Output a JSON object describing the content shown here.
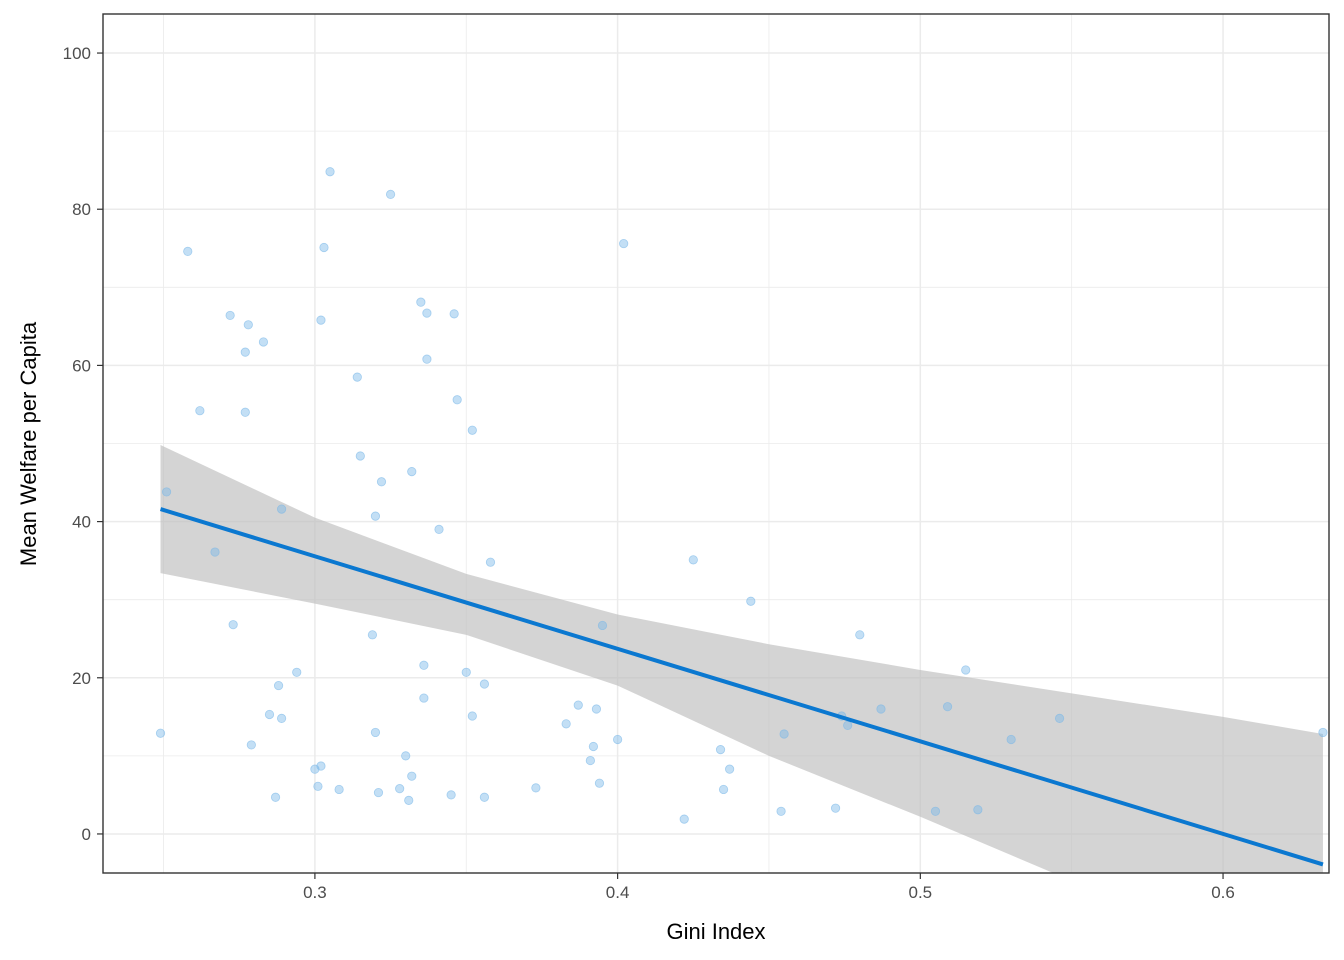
{
  "chart_data": {
    "type": "scatter",
    "xlabel": "Gini Index",
    "ylabel": "Mean Welfare per Capita",
    "xlim": [
      0.23,
      0.635
    ],
    "ylim": [
      -5,
      105
    ],
    "x_ticks": [
      0.3,
      0.4,
      0.5,
      0.6
    ],
    "x_tick_labels": [
      "0.3",
      "0.4",
      "0.5",
      "0.6"
    ],
    "y_ticks": [
      0,
      20,
      40,
      60,
      80,
      100
    ],
    "y_tick_labels": [
      "0",
      "20",
      "40",
      "60",
      "80",
      "100"
    ],
    "grid": true,
    "colors": {
      "points": "#7ab8e8",
      "fit_line": "#0b78d0",
      "ribbon": "#bdbdbd",
      "grid": "#ebebeb",
      "border": "#333333"
    },
    "points": [
      {
        "x": 0.249,
        "y": 12.9
      },
      {
        "x": 0.251,
        "y": 43.8
      },
      {
        "x": 0.258,
        "y": 74.6
      },
      {
        "x": 0.262,
        "y": 54.2
      },
      {
        "x": 0.267,
        "y": 36.1
      },
      {
        "x": 0.272,
        "y": 66.4
      },
      {
        "x": 0.273,
        "y": 26.8
      },
      {
        "x": 0.277,
        "y": 61.7
      },
      {
        "x": 0.277,
        "y": 54.0
      },
      {
        "x": 0.278,
        "y": 65.2
      },
      {
        "x": 0.279,
        "y": 11.4
      },
      {
        "x": 0.283,
        "y": 63.0
      },
      {
        "x": 0.285,
        "y": 15.3
      },
      {
        "x": 0.287,
        "y": 4.7
      },
      {
        "x": 0.288,
        "y": 19.0
      },
      {
        "x": 0.289,
        "y": 14.8
      },
      {
        "x": 0.289,
        "y": 41.6
      },
      {
        "x": 0.294,
        "y": 20.7
      },
      {
        "x": 0.3,
        "y": 8.3
      },
      {
        "x": 0.301,
        "y": 6.1
      },
      {
        "x": 0.302,
        "y": 8.7
      },
      {
        "x": 0.302,
        "y": 65.8
      },
      {
        "x": 0.303,
        "y": 75.1
      },
      {
        "x": 0.305,
        "y": 84.8
      },
      {
        "x": 0.308,
        "y": 5.7
      },
      {
        "x": 0.314,
        "y": 58.5
      },
      {
        "x": 0.315,
        "y": 48.4
      },
      {
        "x": 0.319,
        "y": 25.5
      },
      {
        "x": 0.32,
        "y": 40.7
      },
      {
        "x": 0.32,
        "y": 13.0
      },
      {
        "x": 0.321,
        "y": 5.3
      },
      {
        "x": 0.322,
        "y": 45.1
      },
      {
        "x": 0.325,
        "y": 81.9
      },
      {
        "x": 0.328,
        "y": 5.8
      },
      {
        "x": 0.33,
        "y": 10.0
      },
      {
        "x": 0.331,
        "y": 4.3
      },
      {
        "x": 0.332,
        "y": 7.4
      },
      {
        "x": 0.332,
        "y": 46.4
      },
      {
        "x": 0.335,
        "y": 68.1
      },
      {
        "x": 0.336,
        "y": 21.6
      },
      {
        "x": 0.336,
        "y": 17.4
      },
      {
        "x": 0.337,
        "y": 60.8
      },
      {
        "x": 0.337,
        "y": 66.7
      },
      {
        "x": 0.341,
        "y": 39.0
      },
      {
        "x": 0.345,
        "y": 5.0
      },
      {
        "x": 0.346,
        "y": 66.6
      },
      {
        "x": 0.347,
        "y": 55.6
      },
      {
        "x": 0.35,
        "y": 20.7
      },
      {
        "x": 0.352,
        "y": 51.7
      },
      {
        "x": 0.352,
        "y": 15.1
      },
      {
        "x": 0.356,
        "y": 4.7
      },
      {
        "x": 0.356,
        "y": 19.2
      },
      {
        "x": 0.358,
        "y": 34.8
      },
      {
        "x": 0.373,
        "y": 5.9
      },
      {
        "x": 0.383,
        "y": 14.1
      },
      {
        "x": 0.387,
        "y": 16.5
      },
      {
        "x": 0.391,
        "y": 9.4
      },
      {
        "x": 0.392,
        "y": 11.2
      },
      {
        "x": 0.393,
        "y": 16.0
      },
      {
        "x": 0.394,
        "y": 6.5
      },
      {
        "x": 0.395,
        "y": 26.7
      },
      {
        "x": 0.4,
        "y": 12.1
      },
      {
        "x": 0.402,
        "y": 75.6
      },
      {
        "x": 0.422,
        "y": 1.9
      },
      {
        "x": 0.425,
        "y": 35.1
      },
      {
        "x": 0.434,
        "y": 10.8
      },
      {
        "x": 0.435,
        "y": 5.7
      },
      {
        "x": 0.437,
        "y": 8.3
      },
      {
        "x": 0.444,
        "y": 29.8
      },
      {
        "x": 0.454,
        "y": 2.9
      },
      {
        "x": 0.455,
        "y": 12.8
      },
      {
        "x": 0.472,
        "y": 3.3
      },
      {
        "x": 0.474,
        "y": 15.1
      },
      {
        "x": 0.476,
        "y": 13.9
      },
      {
        "x": 0.48,
        "y": 25.5
      },
      {
        "x": 0.487,
        "y": 16.0
      },
      {
        "x": 0.505,
        "y": 2.9
      },
      {
        "x": 0.509,
        "y": 16.3
      },
      {
        "x": 0.515,
        "y": 21.0
      },
      {
        "x": 0.519,
        "y": 3.1
      },
      {
        "x": 0.53,
        "y": 12.1
      },
      {
        "x": 0.546,
        "y": 14.8
      },
      {
        "x": 0.633,
        "y": 13.0
      }
    ],
    "fit_line": {
      "x": [
        0.249,
        0.633
      ],
      "y": [
        41.6,
        -3.9
      ]
    },
    "confidence_band": {
      "x": [
        0.249,
        0.3,
        0.35,
        0.4,
        0.45,
        0.5,
        0.55,
        0.6,
        0.633
      ],
      "upper": [
        49.8,
        40.5,
        33.3,
        28.1,
        24.3,
        21.0,
        18.0,
        15.0,
        12.8
      ],
      "lower": [
        33.4,
        29.5,
        25.5,
        19.0,
        10.0,
        2.2,
        -6.0,
        -14.0,
        -20.6
      ]
    }
  }
}
